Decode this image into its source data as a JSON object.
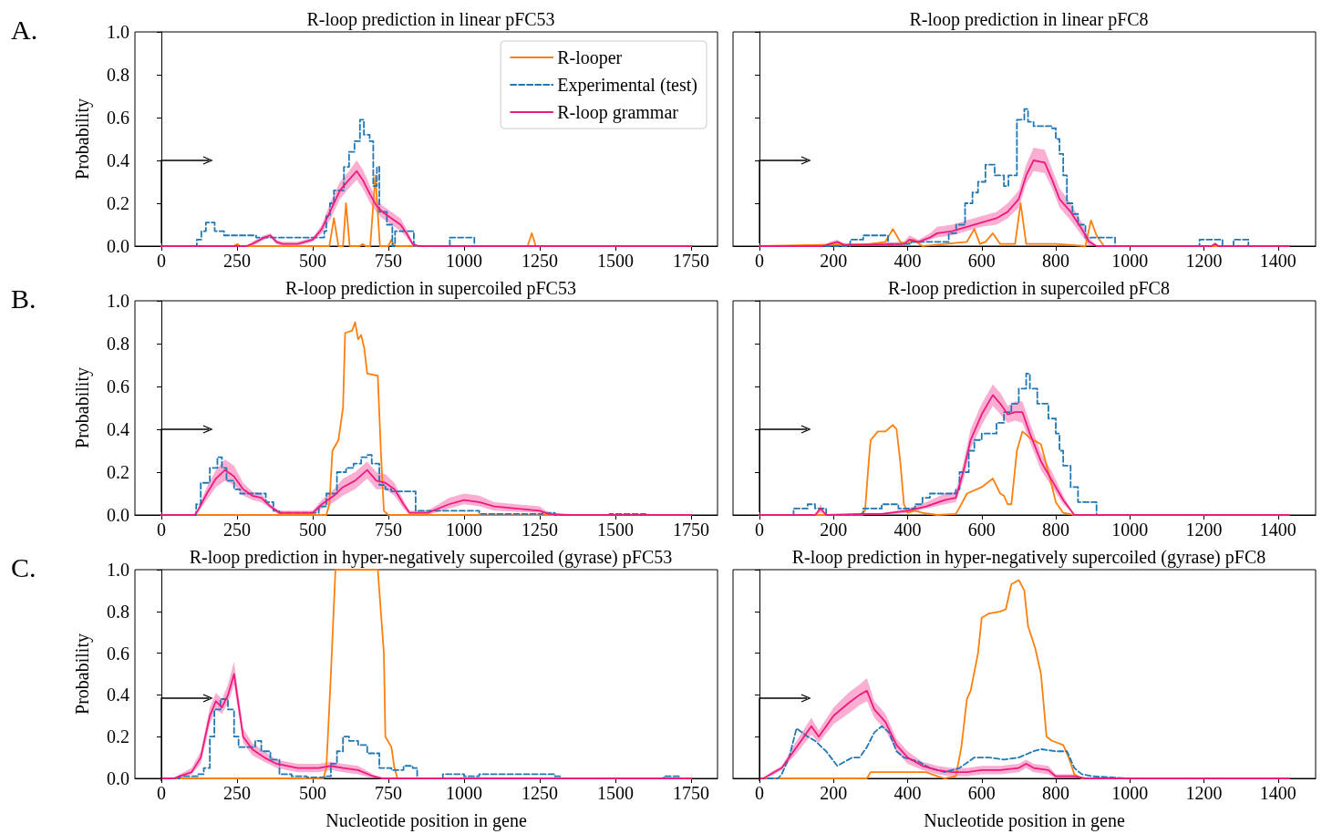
{
  "chart_data": [
    {
      "type": "line",
      "title": "R-loop prediction in linear pFC53",
      "ylabel": "Probability",
      "annotations": [
        "A."
      ],
      "legend": "top right",
      "marker": "none",
      "xlim": [
        -87.5,
        1837.5
      ],
      "xticks": [
        0,
        250,
        500,
        750,
        1000,
        1250,
        1500,
        1750
      ],
      "ylim": [
        0,
        1
      ],
      "yticks": [
        {
          "value": 0,
          "label": "0.0"
        },
        {
          "value": 0.2,
          "label": "0.2"
        },
        {
          "value": 0.4,
          "label": "0.4"
        },
        {
          "value": 0.6,
          "label": "0.6"
        },
        {
          "value": 0.8,
          "label": "0.8"
        },
        {
          "value": 1,
          "label": "1.0"
        }
      ],
      "series": [
        {
          "name": "R-looper",
          "color": "#ff7f0e",
          "line_style": "solid",
          "x": [
            0,
            240,
            250,
            260,
            540,
            555,
            570,
            585,
            600,
            610,
            622,
            655,
            665,
            675,
            690,
            707,
            722,
            750,
            760,
            770,
            1210,
            1224,
            1237,
            1750
          ],
          "values": [
            0,
            0,
            0.01,
            0,
            0,
            0,
            0.13,
            0,
            0,
            0.2,
            0,
            0,
            0.01,
            0,
            0,
            0.33,
            0,
            0,
            0.03,
            0,
            0,
            0.06,
            0,
            0
          ]
        },
        {
          "name": "Experimental (test)",
          "type": "step",
          "color": "#1f77b4",
          "line_style": "dashed",
          "x": [
            0,
            117,
            132,
            147,
            176,
            207,
            313,
            538,
            545,
            557,
            570,
            603,
            620,
            638,
            656,
            669,
            688,
            700,
            712,
            720,
            745,
            763,
            772,
            834,
            953,
            1034,
            1750
          ],
          "values": [
            0,
            0.03,
            0.07,
            0.11,
            0.07,
            0.05,
            0.04,
            0.07,
            0.14,
            0.2,
            0.26,
            0.37,
            0.44,
            0.49,
            0.59,
            0.52,
            0.49,
            0.28,
            0.37,
            0.16,
            0.1,
            0,
            0.07,
            0,
            0.04,
            0,
            0
          ]
        },
        {
          "name": "R-loop grammar",
          "color": "#f0197d",
          "line_style": "solid",
          "x": [
            0,
            280,
            300,
            340,
            360,
            380,
            400,
            450,
            500,
            530,
            560,
            590,
            620,
            645,
            665,
            690,
            710,
            730,
            760,
            790,
            810,
            830,
            850,
            1750
          ],
          "values": [
            0,
            0,
            0.01,
            0.04,
            0.05,
            0.02,
            0.01,
            0.01,
            0.03,
            0.08,
            0.17,
            0.26,
            0.31,
            0.35,
            0.31,
            0.24,
            0.19,
            0.16,
            0.13,
            0.1,
            0.06,
            0.01,
            0,
            0
          ],
          "lower": [
            0,
            0,
            0,
            0.03,
            0.04,
            0.01,
            0,
            0,
            0.02,
            0.06,
            0.13,
            0.22,
            0.27,
            0.31,
            0.27,
            0.2,
            0.16,
            0.13,
            0.1,
            0.07,
            0.04,
            0,
            0,
            0
          ],
          "upper": [
            0,
            0,
            0.02,
            0.05,
            0.06,
            0.03,
            0.02,
            0.02,
            0.04,
            0.1,
            0.21,
            0.3,
            0.35,
            0.4,
            0.36,
            0.28,
            0.22,
            0.19,
            0.16,
            0.13,
            0.08,
            0.02,
            0,
            0
          ]
        }
      ]
    },
    {
      "type": "line",
      "title": "R-loop prediction in linear pFC8",
      "tick_labels": "x",
      "marker": "none",
      "xlim": [
        -71.5,
        1501.5
      ],
      "xticks": [
        0,
        200,
        400,
        600,
        800,
        1000,
        1200,
        1400
      ],
      "ylim": [
        0,
        1
      ],
      "yticks": [
        0,
        0.2,
        0.4,
        0.6,
        0.8,
        1
      ],
      "series": [
        {
          "color": "#ff7f0e",
          "line_style": "solid",
          "x": [
            0,
            300,
            340,
            360,
            380,
            400,
            415,
            440,
            560,
            580,
            595,
            610,
            630,
            650,
            690,
            705,
            720,
            800,
            880,
            895,
            910,
            930,
            1400
          ],
          "values": [
            0,
            0.01,
            0.02,
            0.08,
            0.02,
            0.01,
            0.03,
            0,
            0.02,
            0.08,
            0.01,
            0.02,
            0.06,
            0.01,
            0.01,
            0.2,
            0.01,
            0.01,
            0,
            0.12,
            0.05,
            0,
            0
          ]
        },
        {
          "type": "step",
          "color": "#1f77b4",
          "line_style": "dashed",
          "x": [
            0,
            245,
            280,
            347,
            410,
            511,
            531,
            555,
            575,
            590,
            610,
            635,
            660,
            672,
            695,
            715,
            725,
            740,
            790,
            800,
            810,
            820,
            830,
            845,
            860,
            880,
            960,
            1188,
            1250,
            1280,
            1320,
            1430
          ],
          "values": [
            0,
            0.03,
            0.05,
            0.01,
            0.02,
            0.06,
            0.1,
            0.2,
            0.25,
            0.3,
            0.38,
            0.33,
            0.28,
            0.33,
            0.59,
            0.64,
            0.58,
            0.56,
            0.55,
            0.5,
            0.43,
            0.33,
            0.2,
            0.15,
            0.1,
            0.04,
            0,
            0.03,
            0,
            0.03,
            0,
            0
          ]
        },
        {
          "color": "#f0197d",
          "line_style": "solid",
          "x": [
            0,
            170,
            190,
            210,
            230,
            390,
            405,
            430,
            460,
            480,
            520,
            560,
            600,
            640,
            670,
            700,
            720,
            740,
            770,
            790,
            810,
            840,
            870,
            890,
            910,
            1220,
            1230,
            1240,
            1430
          ],
          "values": [
            0,
            0,
            0.01,
            0.02,
            0.005,
            0.01,
            0.03,
            0.02,
            0.04,
            0.06,
            0.07,
            0.09,
            0.11,
            0.13,
            0.16,
            0.22,
            0.33,
            0.4,
            0.39,
            0.31,
            0.22,
            0.16,
            0.08,
            0.02,
            0,
            0,
            0.01,
            0,
            0
          ],
          "lower": [
            0,
            0,
            0,
            0.01,
            0,
            0,
            0.02,
            0.01,
            0.03,
            0.04,
            0.05,
            0.07,
            0.09,
            0.1,
            0.13,
            0.18,
            0.29,
            0.35,
            0.34,
            0.27,
            0.18,
            0.12,
            0.05,
            0,
            0,
            0,
            0,
            0,
            0
          ],
          "upper": [
            0,
            0,
            0.02,
            0.03,
            0.01,
            0.02,
            0.05,
            0.03,
            0.06,
            0.09,
            0.1,
            0.12,
            0.14,
            0.16,
            0.2,
            0.26,
            0.38,
            0.46,
            0.45,
            0.36,
            0.27,
            0.2,
            0.11,
            0.04,
            0,
            0,
            0.02,
            0,
            0
          ]
        }
      ]
    },
    {
      "type": "line",
      "title": "R-loop prediction in supercoiled pFC53",
      "ylabel": "Probability",
      "annotations": [
        "B."
      ],
      "marker": "none",
      "xlim": [
        -87.5,
        1837.5
      ],
      "xticks": [
        0,
        250,
        500,
        750,
        1000,
        1250,
        1500,
        1750
      ],
      "ylim": [
        0,
        1
      ],
      "yticks": [
        {
          "value": 0,
          "label": "0.0"
        },
        {
          "value": 0.2,
          "label": "0.2"
        },
        {
          "value": 0.4,
          "label": "0.4"
        },
        {
          "value": 0.6,
          "label": "0.6"
        },
        {
          "value": 0.8,
          "label": "0.8"
        },
        {
          "value": 1,
          "label": "1.0"
        }
      ],
      "series": [
        {
          "color": "#ff7f0e",
          "line_style": "solid",
          "x": [
            0,
            545,
            555,
            565,
            585,
            600,
            607,
            630,
            640,
            650,
            660,
            670,
            680,
            715,
            725,
            735,
            750,
            1750
          ],
          "values": [
            0,
            0,
            0.05,
            0.3,
            0.35,
            0.5,
            0.85,
            0.86,
            0.9,
            0.82,
            0.84,
            0.78,
            0.66,
            0.65,
            0.3,
            0.02,
            0,
            0
          ]
        },
        {
          "type": "step",
          "color": "#1f77b4",
          "line_style": "dashed",
          "x": [
            0,
            115,
            130,
            160,
            185,
            200,
            215,
            240,
            260,
            300,
            345,
            370,
            390,
            500,
            520,
            545,
            580,
            610,
            635,
            660,
            680,
            695,
            720,
            740,
            760,
            790,
            840,
            1000,
            1050,
            1260,
            1300,
            1480,
            1600,
            1750
          ],
          "values": [
            0,
            0.05,
            0.15,
            0.22,
            0.27,
            0.22,
            0.16,
            0.12,
            0.1,
            0.1,
            0.06,
            0.02,
            0.01,
            0.01,
            0.04,
            0.1,
            0.2,
            0.22,
            0.24,
            0.27,
            0.28,
            0.24,
            0.14,
            0.12,
            0.11,
            0.11,
            0.02,
            0.02,
            0.005,
            0.01,
            0,
            0.005,
            0,
            0
          ]
        },
        {
          "color": "#f0197d",
          "line_style": "solid",
          "x": [
            0,
            110,
            120,
            150,
            180,
            210,
            240,
            270,
            300,
            330,
            360,
            390,
            500,
            530,
            570,
            600,
            640,
            680,
            710,
            740,
            770,
            800,
            820,
            880,
            950,
            1000,
            1050,
            1100,
            1250,
            1280,
            1350,
            1750
          ],
          "values": [
            0,
            0,
            0.02,
            0.1,
            0.17,
            0.21,
            0.18,
            0.12,
            0.09,
            0.08,
            0.04,
            0.01,
            0.01,
            0.05,
            0.09,
            0.13,
            0.16,
            0.21,
            0.16,
            0.15,
            0.12,
            0.05,
            0.01,
            0.01,
            0.05,
            0.07,
            0.06,
            0.04,
            0.02,
            0.005,
            0,
            0
          ],
          "lower": [
            0,
            0,
            0.01,
            0.07,
            0.13,
            0.16,
            0.14,
            0.09,
            0.07,
            0.06,
            0.03,
            0,
            0,
            0.03,
            0.06,
            0.09,
            0.12,
            0.17,
            0.12,
            0.12,
            0.09,
            0.03,
            0,
            0,
            0.03,
            0.05,
            0.04,
            0.02,
            0.01,
            0,
            0,
            0
          ],
          "upper": [
            0,
            0,
            0.03,
            0.13,
            0.21,
            0.26,
            0.23,
            0.15,
            0.11,
            0.1,
            0.05,
            0.02,
            0.02,
            0.07,
            0.12,
            0.17,
            0.2,
            0.25,
            0.2,
            0.19,
            0.15,
            0.07,
            0.02,
            0.02,
            0.08,
            0.1,
            0.09,
            0.06,
            0.04,
            0.01,
            0,
            0
          ]
        }
      ]
    },
    {
      "type": "line",
      "title": "R-loop prediction in supercoiled pFC8",
      "tick_labels": "x",
      "marker": "none",
      "xlim": [
        -71.5,
        1501.5
      ],
      "xticks": [
        0,
        200,
        400,
        600,
        800,
        1000,
        1200,
        1400
      ],
      "ylim": [
        0,
        1
      ],
      "yticks": [
        0,
        0.2,
        0.4,
        0.6,
        0.8,
        1
      ],
      "series": [
        {
          "color": "#ff7f0e",
          "line_style": "solid",
          "x": [
            0,
            270,
            285,
            295,
            300,
            320,
            340,
            360,
            370,
            380,
            390,
            400,
            420,
            440,
            480,
            530,
            545,
            560,
            600,
            630,
            650,
            660,
            670,
            680,
            695,
            710,
            730,
            760,
            780,
            800,
            820,
            850,
            1430
          ],
          "values": [
            0,
            0,
            0.02,
            0.25,
            0.35,
            0.39,
            0.39,
            0.42,
            0.4,
            0.25,
            0.05,
            0.01,
            0.02,
            0.01,
            0,
            0.005,
            0.05,
            0.1,
            0.13,
            0.17,
            0.1,
            0.09,
            0.05,
            0.05,
            0.3,
            0.39,
            0.36,
            0.33,
            0.2,
            0.06,
            0.01,
            0,
            0
          ]
        },
        {
          "type": "step",
          "color": "#1f77b4",
          "line_style": "dashed",
          "x": [
            0,
            92,
            130,
            150,
            180,
            280,
            330,
            375,
            420,
            440,
            460,
            530,
            540,
            565,
            580,
            600,
            640,
            660,
            680,
            700,
            720,
            730,
            750,
            780,
            800,
            810,
            820,
            840,
            860,
            910,
            1430
          ],
          "values": [
            0,
            0.03,
            0.05,
            0.03,
            0,
            0.03,
            0.05,
            0.03,
            0.05,
            0.08,
            0.1,
            0.12,
            0.2,
            0.3,
            0.35,
            0.38,
            0.43,
            0.48,
            0.52,
            0.59,
            0.66,
            0.59,
            0.52,
            0.45,
            0.38,
            0.3,
            0.23,
            0.13,
            0.06,
            0,
            0
          ]
        },
        {
          "color": "#f0197d",
          "line_style": "solid",
          "x": [
            0,
            150,
            165,
            180,
            280,
            330,
            400,
            450,
            500,
            530,
            550,
            570,
            600,
            630,
            650,
            670,
            690,
            710,
            730,
            760,
            790,
            820,
            850,
            1430
          ],
          "values": [
            0,
            0,
            0.03,
            0,
            0.005,
            0.005,
            0.02,
            0.04,
            0.07,
            0.08,
            0.2,
            0.35,
            0.47,
            0.56,
            0.52,
            0.47,
            0.48,
            0.48,
            0.38,
            0.25,
            0.16,
            0.07,
            0,
            0
          ],
          "lower": [
            0,
            0,
            0.01,
            0,
            0,
            0,
            0.01,
            0.03,
            0.05,
            0.06,
            0.16,
            0.31,
            0.42,
            0.51,
            0.47,
            0.43,
            0.44,
            0.43,
            0.34,
            0.21,
            0.13,
            0.05,
            0,
            0
          ],
          "upper": [
            0,
            0,
            0.05,
            0,
            0.01,
            0.01,
            0.03,
            0.06,
            0.1,
            0.11,
            0.24,
            0.4,
            0.52,
            0.61,
            0.57,
            0.51,
            0.53,
            0.53,
            0.43,
            0.29,
            0.2,
            0.09,
            0,
            0
          ]
        }
      ]
    },
    {
      "type": "line",
      "title": "R-loop prediction in hyper-negatively supercoiled (gyrase) pFC53",
      "xlabel": "Nucleotide position in gene",
      "ylabel": "Probability",
      "annotations": [
        "C."
      ],
      "marker": "none",
      "xlim": [
        -87.5,
        1837.5
      ],
      "xticks": [
        0,
        250,
        500,
        750,
        1000,
        1250,
        1500,
        1750
      ],
      "ylim": [
        0,
        1
      ],
      "yticks": [
        {
          "value": 0,
          "label": "0.0"
        },
        {
          "value": 0.2,
          "label": "0.2"
        },
        {
          "value": 0.4,
          "label": "0.4"
        },
        {
          "value": 0.6,
          "label": "0.6"
        },
        {
          "value": 0.8,
          "label": "0.8"
        },
        {
          "value": 1,
          "label": "1.0"
        }
      ],
      "series": [
        {
          "color": "#ff7f0e",
          "line_style": "solid",
          "x": [
            0,
            535,
            545,
            560,
            575,
            715,
            725,
            735,
            740,
            760,
            770,
            780,
            1750
          ],
          "values": [
            0,
            0,
            0.05,
            0.5,
            1,
            1,
            0.8,
            0.6,
            0.2,
            0.15,
            0.05,
            0,
            0
          ]
        },
        {
          "type": "step",
          "color": "#1f77b4",
          "line_style": "dashed",
          "x": [
            0,
            60,
            120,
            140,
            160,
            175,
            195,
            220,
            240,
            255,
            290,
            310,
            330,
            360,
            390,
            430,
            480,
            540,
            560,
            580,
            600,
            620,
            650,
            680,
            720,
            760,
            800,
            830,
            845,
            930,
            1000,
            1050,
            1300,
            1320,
            1660,
            1710,
            1750
          ],
          "values": [
            0,
            0.01,
            0.02,
            0.05,
            0.2,
            0.33,
            0.38,
            0.33,
            0.2,
            0.15,
            0.15,
            0.18,
            0.13,
            0.09,
            0.02,
            0.01,
            0.005,
            0.01,
            0.07,
            0.13,
            0.2,
            0.18,
            0.16,
            0.12,
            0.05,
            0.04,
            0.06,
            0.05,
            0,
            0.02,
            0.01,
            0.02,
            0.01,
            0,
            0.01,
            0,
            0
          ]
        },
        {
          "color": "#f0197d",
          "line_style": "solid",
          "x": [
            0,
            40,
            60,
            100,
            130,
            160,
            180,
            200,
            220,
            240,
            255,
            270,
            300,
            340,
            380,
            450,
            520,
            560,
            600,
            650,
            700,
            730,
            1750
          ],
          "values": [
            0,
            0,
            0.01,
            0.03,
            0.1,
            0.3,
            0.37,
            0.34,
            0.4,
            0.5,
            0.35,
            0.2,
            0.14,
            0.1,
            0.07,
            0.05,
            0.05,
            0.06,
            0.05,
            0.04,
            0.01,
            0,
            0
          ],
          "lower": [
            0,
            0,
            0,
            0.02,
            0.07,
            0.26,
            0.33,
            0.31,
            0.36,
            0.45,
            0.31,
            0.17,
            0.11,
            0.08,
            0.05,
            0.03,
            0.03,
            0.04,
            0.03,
            0.02,
            0,
            0,
            0
          ],
          "upper": [
            0,
            0,
            0.02,
            0.05,
            0.13,
            0.34,
            0.41,
            0.38,
            0.45,
            0.56,
            0.4,
            0.24,
            0.17,
            0.13,
            0.09,
            0.07,
            0.07,
            0.08,
            0.07,
            0.06,
            0.02,
            0,
            0
          ]
        }
      ]
    },
    {
      "type": "line",
      "title": "R-loop prediction in hyper-negatively supercoiled (gyrase) pFC8",
      "xlabel": "Nucleotide position in gene",
      "tick_labels": "x",
      "marker": "none",
      "xlim": [
        -71.5,
        1501.5
      ],
      "xticks": [
        0,
        200,
        400,
        600,
        800,
        1000,
        1200,
        1400
      ],
      "ylim": [
        0,
        1
      ],
      "yticks": [
        0,
        0.2,
        0.4,
        0.6,
        0.8,
        1
      ],
      "series": [
        {
          "color": "#ff7f0e",
          "line_style": "solid",
          "x": [
            0,
            290,
            300,
            450,
            480,
            500,
            530,
            545,
            560,
            570,
            590,
            600,
            620,
            650,
            665,
            680,
            700,
            715,
            725,
            745,
            760,
            775,
            790,
            820,
            835,
            850,
            870,
            1430
          ],
          "values": [
            0,
            0,
            0.03,
            0.03,
            0.01,
            0,
            0.01,
            0.15,
            0.38,
            0.42,
            0.6,
            0.77,
            0.79,
            0.8,
            0.81,
            0.93,
            0.95,
            0.9,
            0.73,
            0.62,
            0.5,
            0.2,
            0.18,
            0.16,
            0.1,
            0.02,
            0,
            0
          ]
        },
        {
          "color": "#1f77b4",
          "line_style": "dashed",
          "x": [
            0,
            50,
            60,
            80,
            100,
            130,
            150,
            180,
            210,
            230,
            250,
            270,
            290,
            310,
            330,
            350,
            370,
            390,
            430,
            460,
            500,
            540,
            580,
            620,
            660,
            700,
            740,
            760,
            800,
            830,
            850,
            870,
            900,
            950,
            1000,
            1430
          ],
          "values": [
            0,
            0,
            0.02,
            0.1,
            0.24,
            0.2,
            0.18,
            0.13,
            0.06,
            0.08,
            0.1,
            0.1,
            0.15,
            0.22,
            0.25,
            0.22,
            0.13,
            0.1,
            0.08,
            0.05,
            0.03,
            0.05,
            0.1,
            0.1,
            0.09,
            0.1,
            0.13,
            0.14,
            0.13,
            0.13,
            0.05,
            0.02,
            0.01,
            0.005,
            0,
            0
          ]
        },
        {
          "color": "#f0197d",
          "line_style": "solid",
          "x": [
            0,
            10,
            30,
            60,
            100,
            140,
            160,
            200,
            240,
            270,
            290,
            310,
            340,
            370,
            400,
            440,
            480,
            520,
            560,
            600,
            650,
            700,
            720,
            740,
            780,
            800,
            850,
            880,
            1430
          ],
          "values": [
            0,
            0,
            0.02,
            0.05,
            0.15,
            0.25,
            0.2,
            0.3,
            0.36,
            0.4,
            0.42,
            0.33,
            0.27,
            0.16,
            0.1,
            0.06,
            0.04,
            0.03,
            0.03,
            0.04,
            0.04,
            0.05,
            0.07,
            0.05,
            0.04,
            0.01,
            0.01,
            0,
            0
          ],
          "lower": [
            0,
            0,
            0.01,
            0.04,
            0.12,
            0.21,
            0.17,
            0.26,
            0.31,
            0.35,
            0.37,
            0.29,
            0.23,
            0.13,
            0.07,
            0.04,
            0.02,
            0.01,
            0.01,
            0.02,
            0.02,
            0.03,
            0.05,
            0.03,
            0.02,
            0,
            0,
            0,
            0
          ],
          "upper": [
            0,
            0,
            0.03,
            0.06,
            0.18,
            0.29,
            0.23,
            0.34,
            0.41,
            0.45,
            0.48,
            0.37,
            0.31,
            0.19,
            0.13,
            0.08,
            0.06,
            0.05,
            0.05,
            0.06,
            0.06,
            0.07,
            0.09,
            0.07,
            0.06,
            0.02,
            0.02,
            0,
            0
          ]
        }
      ]
    }
  ]
}
